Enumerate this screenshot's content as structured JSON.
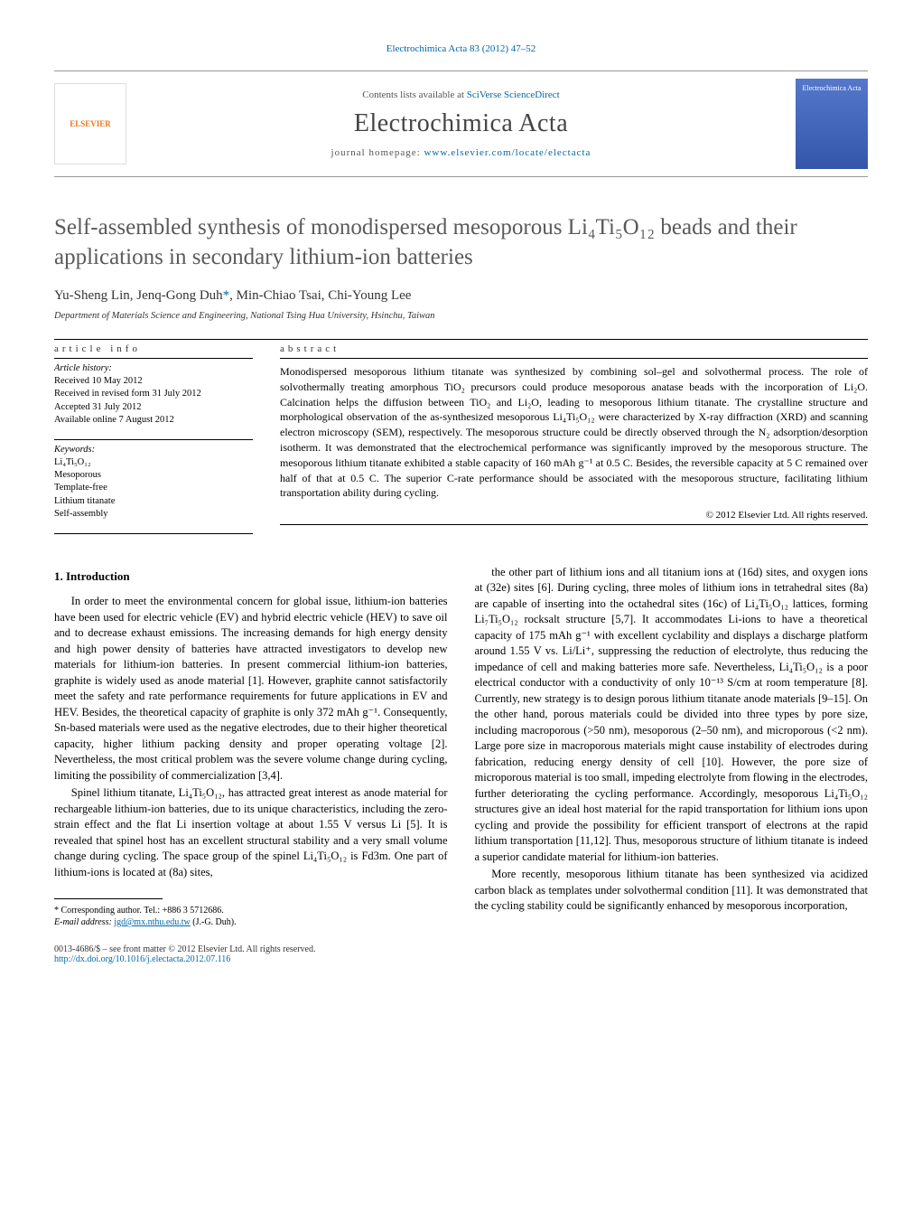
{
  "header": {
    "journal_ref": "Electrochimica Acta 83 (2012) 47–52",
    "contents_prefix": "Contents lists available at ",
    "contents_link": "SciVerse ScienceDirect",
    "journal_name": "Electrochimica Acta",
    "homepage_prefix": "journal homepage: ",
    "homepage_link": "www.elsevier.com/locate/electacta",
    "publisher_logo": "ELSEVIER",
    "cover_logo": "Electrochimica Acta"
  },
  "title": "Self-assembled synthesis of monodispersed mesoporous Li₄Ti₅O₁₂ beads and their applications in secondary lithium-ion batteries",
  "authors": "Yu-Sheng Lin, Jenq-Gong Duh",
  "authors_corr_mark": "*",
  "authors_rest": ", Min-Chiao Tsai, Chi-Young Lee",
  "affiliation": "Department of Materials Science and Engineering, National Tsing Hua University, Hsinchu, Taiwan",
  "article_info": {
    "heading": "article info",
    "history_label": "Article history:",
    "received": "Received 10 May 2012",
    "received_revised": "Received in revised form 31 July 2012",
    "accepted": "Accepted 31 July 2012",
    "available": "Available online 7 August 2012",
    "keywords_label": "Keywords:",
    "keywords": [
      "Li₄Ti₅O₁₂",
      "Mesoporous",
      "Template-free",
      "Lithium titanate",
      "Self-assembly"
    ]
  },
  "abstract": {
    "heading": "abstract",
    "text": "Monodispersed mesoporous lithium titanate was synthesized by combining sol–gel and solvothermal process. The role of solvothermally treating amorphous TiO₂ precursors could produce mesoporous anatase beads with the incorporation of Li₂O. Calcination helps the diffusion between TiO₂ and Li₂O, leading to mesoporous lithium titanate. The crystalline structure and morphological observation of the as-synthesized mesoporous Li₄Ti₅O₁₂ were characterized by X-ray diffraction (XRD) and scanning electron microscopy (SEM), respectively. The mesoporous structure could be directly observed through the N₂ adsorption/desorption isotherm. It was demonstrated that the electrochemical performance was significantly improved by the mesoporous structure. The mesoporous lithium titanate exhibited a stable capacity of 160 mAh g⁻¹ at 0.5 C. Besides, the reversible capacity at 5 C remained over half of that at 0.5 C. The superior C-rate performance should be associated with the mesoporous structure, facilitating lithium transportation ability during cycling.",
    "copyright": "© 2012 Elsevier Ltd. All rights reserved."
  },
  "body": {
    "section_heading": "1. Introduction",
    "p1": "In order to meet the environmental concern for global issue, lithium-ion batteries have been used for electric vehicle (EV) and hybrid electric vehicle (HEV) to save oil and to decrease exhaust emissions. The increasing demands for high energy density and high power density of batteries have attracted investigators to develop new materials for lithium-ion batteries. In present commercial lithium-ion batteries, graphite is widely used as anode material [1]. However, graphite cannot satisfactorily meet the safety and rate performance requirements for future applications in EV and HEV. Besides, the theoretical capacity of graphite is only 372 mAh g⁻¹. Consequently, Sn-based materials were used as the negative electrodes, due to their higher theoretical capacity, higher lithium packing density and proper operating voltage [2]. Nevertheless, the most critical problem was the severe volume change during cycling, limiting the possibility of commercialization [3,4].",
    "p2": "Spinel lithium titanate, Li₄Ti₅O₁₂, has attracted great interest as anode material for rechargeable lithium-ion batteries, due to its unique characteristics, including the zero-strain effect and the flat Li insertion voltage at about 1.55 V versus Li [5]. It is revealed that spinel host has an excellent structural stability and a very small volume change during cycling. The space group of the spinel Li₄Ti₅O₁₂ is Fd3m. One part of lithium-ions is located at (8a) sites,",
    "p3": "the other part of lithium ions and all titanium ions at (16d) sites, and oxygen ions at (32e) sites [6]. During cycling, three moles of lithium ions in tetrahedral sites (8a) are capable of inserting into the octahedral sites (16c) of Li₄Ti₅O₁₂ lattices, forming Li₇Ti₅O₁₂ rocksalt structure [5,7]. It accommodates Li-ions to have a theoretical capacity of 175 mAh g⁻¹ with excellent cyclability and displays a discharge platform around 1.55 V vs. Li/Li⁺, suppressing the reduction of electrolyte, thus reducing the impedance of cell and making batteries more safe. Nevertheless, Li₄Ti₅O₁₂ is a poor electrical conductor with a conductivity of only 10⁻¹³ S/cm at room temperature [8]. Currently, new strategy is to design porous lithium titanate anode materials [9–15]. On the other hand, porous materials could be divided into three types by pore size, including macroporous (>50 nm), mesoporous (2–50 nm), and microporous (<2 nm). Large pore size in macroporous materials might cause instability of electrodes during fabrication, reducing energy density of cell [10]. However, the pore size of microporous material is too small, impeding electrolyte from flowing in the electrodes, further deteriorating the cycling performance. Accordingly, mesoporous Li₄Ti₅O₁₂ structures give an ideal host material for the rapid transportation for lithium ions upon cycling and provide the possibility for efficient transport of electrons at the rapid lithium transportation [11,12]. Thus, mesoporous structure of lithium titanate is indeed a superior candidate material for lithium-ion batteries.",
    "p4": "More recently, mesoporous lithium titanate has been synthesized via acidized carbon black as templates under solvothermal condition [11]. It was demonstrated that the cycling stability could be significantly enhanced by mesoporous incorporation,"
  },
  "footnote": {
    "corr_label": "* Corresponding author. Tel.: +886 3 5712686.",
    "email_label": "E-mail address: ",
    "email": "jgd@mx.nthu.edu.tw",
    "email_suffix": " (J.-G. Duh)."
  },
  "footer": {
    "issn": "0013-4686/$ – see front matter © 2012 Elsevier Ltd. All rights reserved.",
    "doi": "http://dx.doi.org/10.1016/j.electacta.2012.07.116"
  },
  "colors": {
    "link": "#0066aa",
    "title_gray": "#5a5a5a",
    "publisher_orange": "#e87722"
  }
}
